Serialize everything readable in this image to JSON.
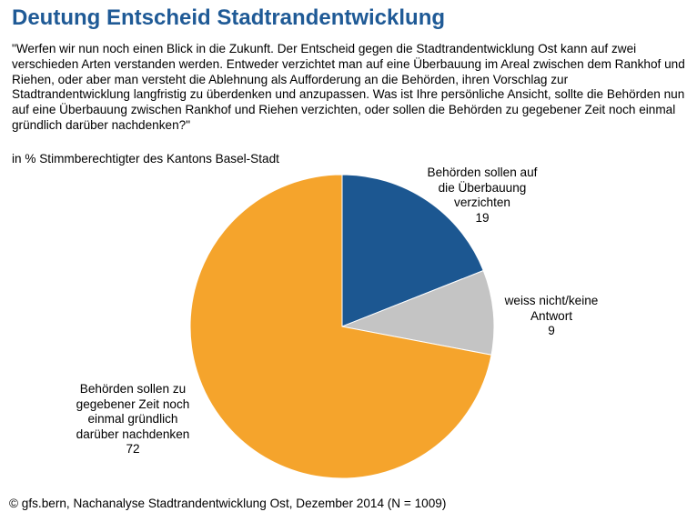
{
  "title": "Deutung Entscheid Stadtrandentwicklung",
  "question": "\"Werfen wir nun noch einen Blick in die Zukunft. Der Entscheid gegen die Stadtrandentwicklung Ost kann auf zwei verschieden Arten verstanden werden. Entweder verzichtet man auf eine Überbauung im Areal zwischen dem Rankhof und Riehen, oder aber man versteht die Ablehnung als Aufforderung an die Behörden, ihren Vorschlag zur Stadtrandentwicklung langfristig zu überdenken und anzupassen. Was ist Ihre persönliche Ansicht, sollte die Behörden nun auf eine Überbauung zwischen Rankhof und Riehen verzichten, oder sollen die Behörden zu gegebener Zeit noch einmal gründlich darüber nachdenken?\"",
  "subtitle": "in % Stimmberechtigter des Kantons Basel-Stadt",
  "source": "© gfs.bern, Nachanalyse Stadtrandentwicklung Ost, Dezember 2014 (N = 1009)",
  "chart_data": {
    "type": "pie",
    "slices": [
      {
        "label": "Behörden sollen auf die Überbauung verzichten",
        "label_lines": [
          "Behörden sollen auf",
          "die Überbauung",
          "verzichten"
        ],
        "value": 19,
        "value_text": "19",
        "color": "#1c5791"
      },
      {
        "label": "weiss nicht/keine Antwort",
        "label_lines": [
          "weiss nicht/keine",
          "Antwort"
        ],
        "value": 9,
        "value_text": "9",
        "color": "#c4c4c4"
      },
      {
        "label": "Behörden sollen zu gegebener Zeit noch einmal gründlich darüber nachdenken",
        "label_lines": [
          "Behörden sollen zu",
          "gegebener Zeit noch",
          "einmal gründlich",
          "darüber nachdenken"
        ],
        "value": 72,
        "value_text": "72",
        "color": "#f5a42c"
      }
    ]
  }
}
